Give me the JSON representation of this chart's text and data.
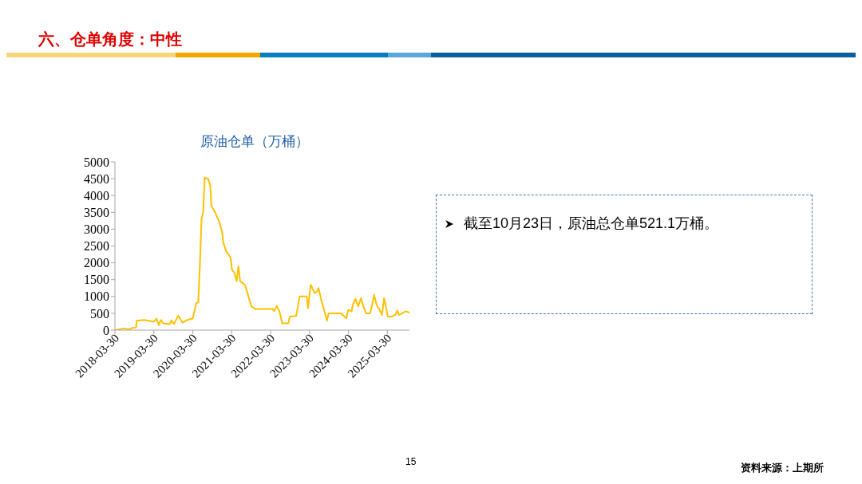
{
  "chart_data": {
    "type": "line",
    "title": "原油仓单（万桶）",
    "annotations": [
      "六、仓单角度：中性",
      "截至10月23日，原油总仓单521.1万桶。",
      "15",
      "资料来源：上期所"
    ],
    "x": [
      "2018-03-30",
      "2018-06-25",
      "2018-08-10",
      "2018-09-05",
      "2018-10-15",
      "2018-10-20",
      "2018-12-30",
      "2019-03-30",
      "2019-04-25",
      "2019-05-15",
      "2019-06-05",
      "2019-06-25",
      "2019-08-30",
      "2019-09-10",
      "2019-10-05",
      "2019-11-15",
      "2019-12-25",
      "2020-02-05",
      "2020-03-30",
      "2020-05-01",
      "2020-05-20",
      "2020-06-05",
      "2020-06-20",
      "2020-07-05",
      "2020-07-20",
      "2020-08-20",
      "2020-09-10",
      "2020-09-20",
      "2020-10-25",
      "2020-12-05",
      "2020-12-30",
      "2021-01-10",
      "2021-02-05",
      "2021-03-20",
      "2021-04-01",
      "2021-04-25",
      "2021-05-15",
      "2021-06-01",
      "2021-06-17",
      "2021-07-31",
      "2021-08-25",
      "2021-10-01",
      "2021-11-08",
      "2022-04-20",
      "2022-05-02",
      "2022-05-27",
      "2022-06-21",
      "2022-07-17",
      "2022-09-13",
      "2022-09-25",
      "2022-11-25",
      "2022-12-27",
      "2023-03-04",
      "2023-03-16",
      "2023-04-10",
      "2023-05-17",
      "2023-06-10",
      "2023-06-23",
      "2023-07-18",
      "2023-08-24",
      "2023-09-10",
      "2023-09-25",
      "2024-01-20",
      "2024-03-10",
      "2024-03-27",
      "2024-04-28",
      "2024-05-10",
      "2024-06-04",
      "2024-06-29",
      "2024-07-24",
      "2024-08-17",
      "2024-09-11",
      "2024-10-18",
      "2024-10-31",
      "2024-11-25",
      "2024-12-19",
      "2025-01-13",
      "2025-02-07",
      "2025-02-27",
      "2025-03-16",
      "2025-04-03",
      "2025-05-05",
      "2025-06-11",
      "2025-07-01",
      "2025-07-18",
      "2025-08-24",
      "2025-09-18",
      "2025-10-23"
    ],
    "series": [
      {
        "color": "#ffc000",
        "values": [
          0,
          50,
          20,
          60,
          80,
          280,
          300,
          250,
          340,
          150,
          300,
          200,
          180,
          290,
          180,
          430,
          220,
          300,
          350,
          800,
          830,
          2000,
          3300,
          3500,
          4530,
          4500,
          4300,
          3700,
          3500,
          3200,
          2900,
          2600,
          2350,
          2150,
          1800,
          1700,
          1450,
          1900,
          1450,
          1350,
          1100,
          700,
          630,
          630,
          560,
          720,
          560,
          200,
          200,
          400,
          420,
          1000,
          1000,
          650,
          1350,
          1100,
          1150,
          1250,
          900,
          480,
          280,
          500,
          500,
          350,
          600,
          560,
          750,
          930,
          700,
          950,
          700,
          500,
          500,
          650,
          1050,
          750,
          620,
          450,
          950,
          700,
          400,
          400,
          450,
          580,
          450,
          520,
          560,
          520
        ]
      }
    ],
    "xlim": [
      "2018-03-30",
      "2025-10-23"
    ],
    "xticks": [
      "2018-03-30",
      "2019-03-30",
      "2020-03-30",
      "2021-03-30",
      "2022-03-30",
      "2023-03-30",
      "2024-03-30",
      "2025-03-30"
    ],
    "ylim": [
      0,
      5000
    ],
    "yticks": [
      0,
      500,
      1000,
      1500,
      2000,
      2500,
      3000,
      3500,
      4000,
      4500,
      5000
    ],
    "grid": false,
    "legend": false,
    "marker": "none",
    "line_style": "solid"
  }
}
